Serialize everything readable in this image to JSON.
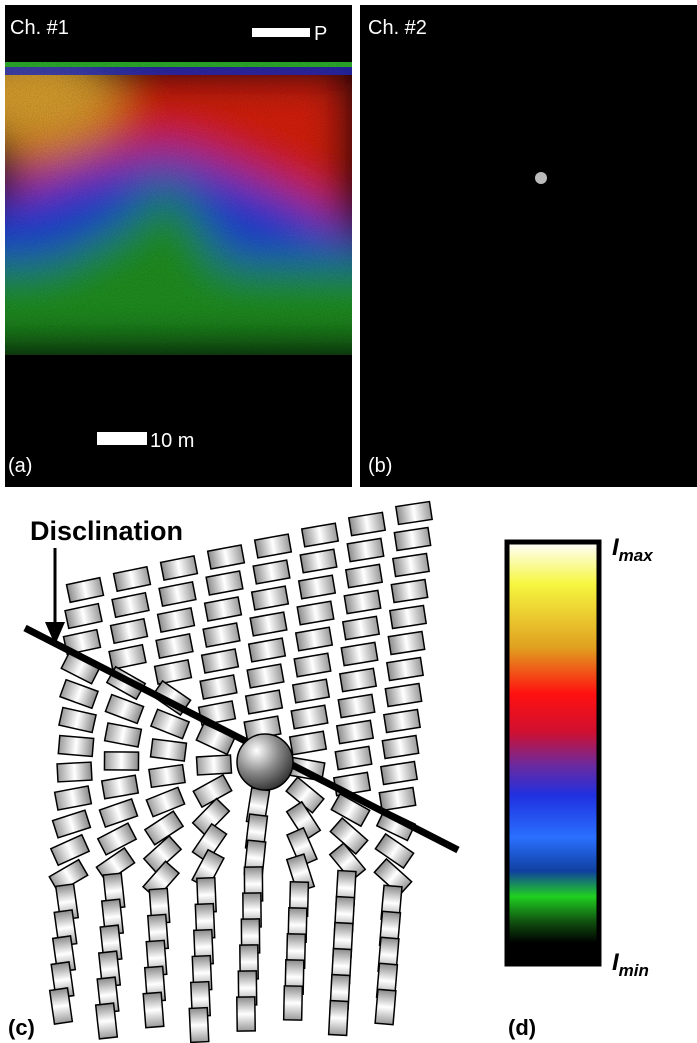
{
  "panel_a": {
    "channel": "Ch. #1",
    "polarizer": "P",
    "scale_bar": "10 m",
    "label": "(a)"
  },
  "panel_b": {
    "channel": "Ch. #2",
    "label": "(b)"
  },
  "panel_c": {
    "annotation": "Disclination",
    "label": "(c)"
  },
  "panel_d": {
    "max_label": {
      "main": "I",
      "sub": "max"
    },
    "min_label": {
      "main": "I",
      "sub": "min"
    },
    "label": "(d)"
  }
}
